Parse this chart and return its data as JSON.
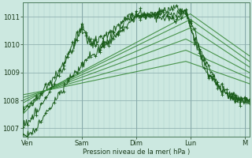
{
  "xlabel": "Pression niveau de la mer( hPa )",
  "bg_color": "#cce8e0",
  "plot_bg_color": "#cce8e0",
  "grid_color_minor": "#aacccc",
  "grid_color_major": "#88aaaa",
  "line_color_dark": "#1a5c1a",
  "line_color_light": "#3a8a3a",
  "ylim": [
    1006.7,
    1011.5
  ],
  "yticks": [
    1007,
    1008,
    1009,
    1010,
    1011
  ],
  "xlim": [
    0,
    100
  ],
  "x_days": [
    "Ven",
    "Sam",
    "Dim",
    "Lun",
    "M"
  ],
  "x_day_positions": [
    2,
    26,
    50,
    74,
    98
  ],
  "total_hours": 100,
  "convergence_x": 10,
  "convergence_y": 1008.3
}
